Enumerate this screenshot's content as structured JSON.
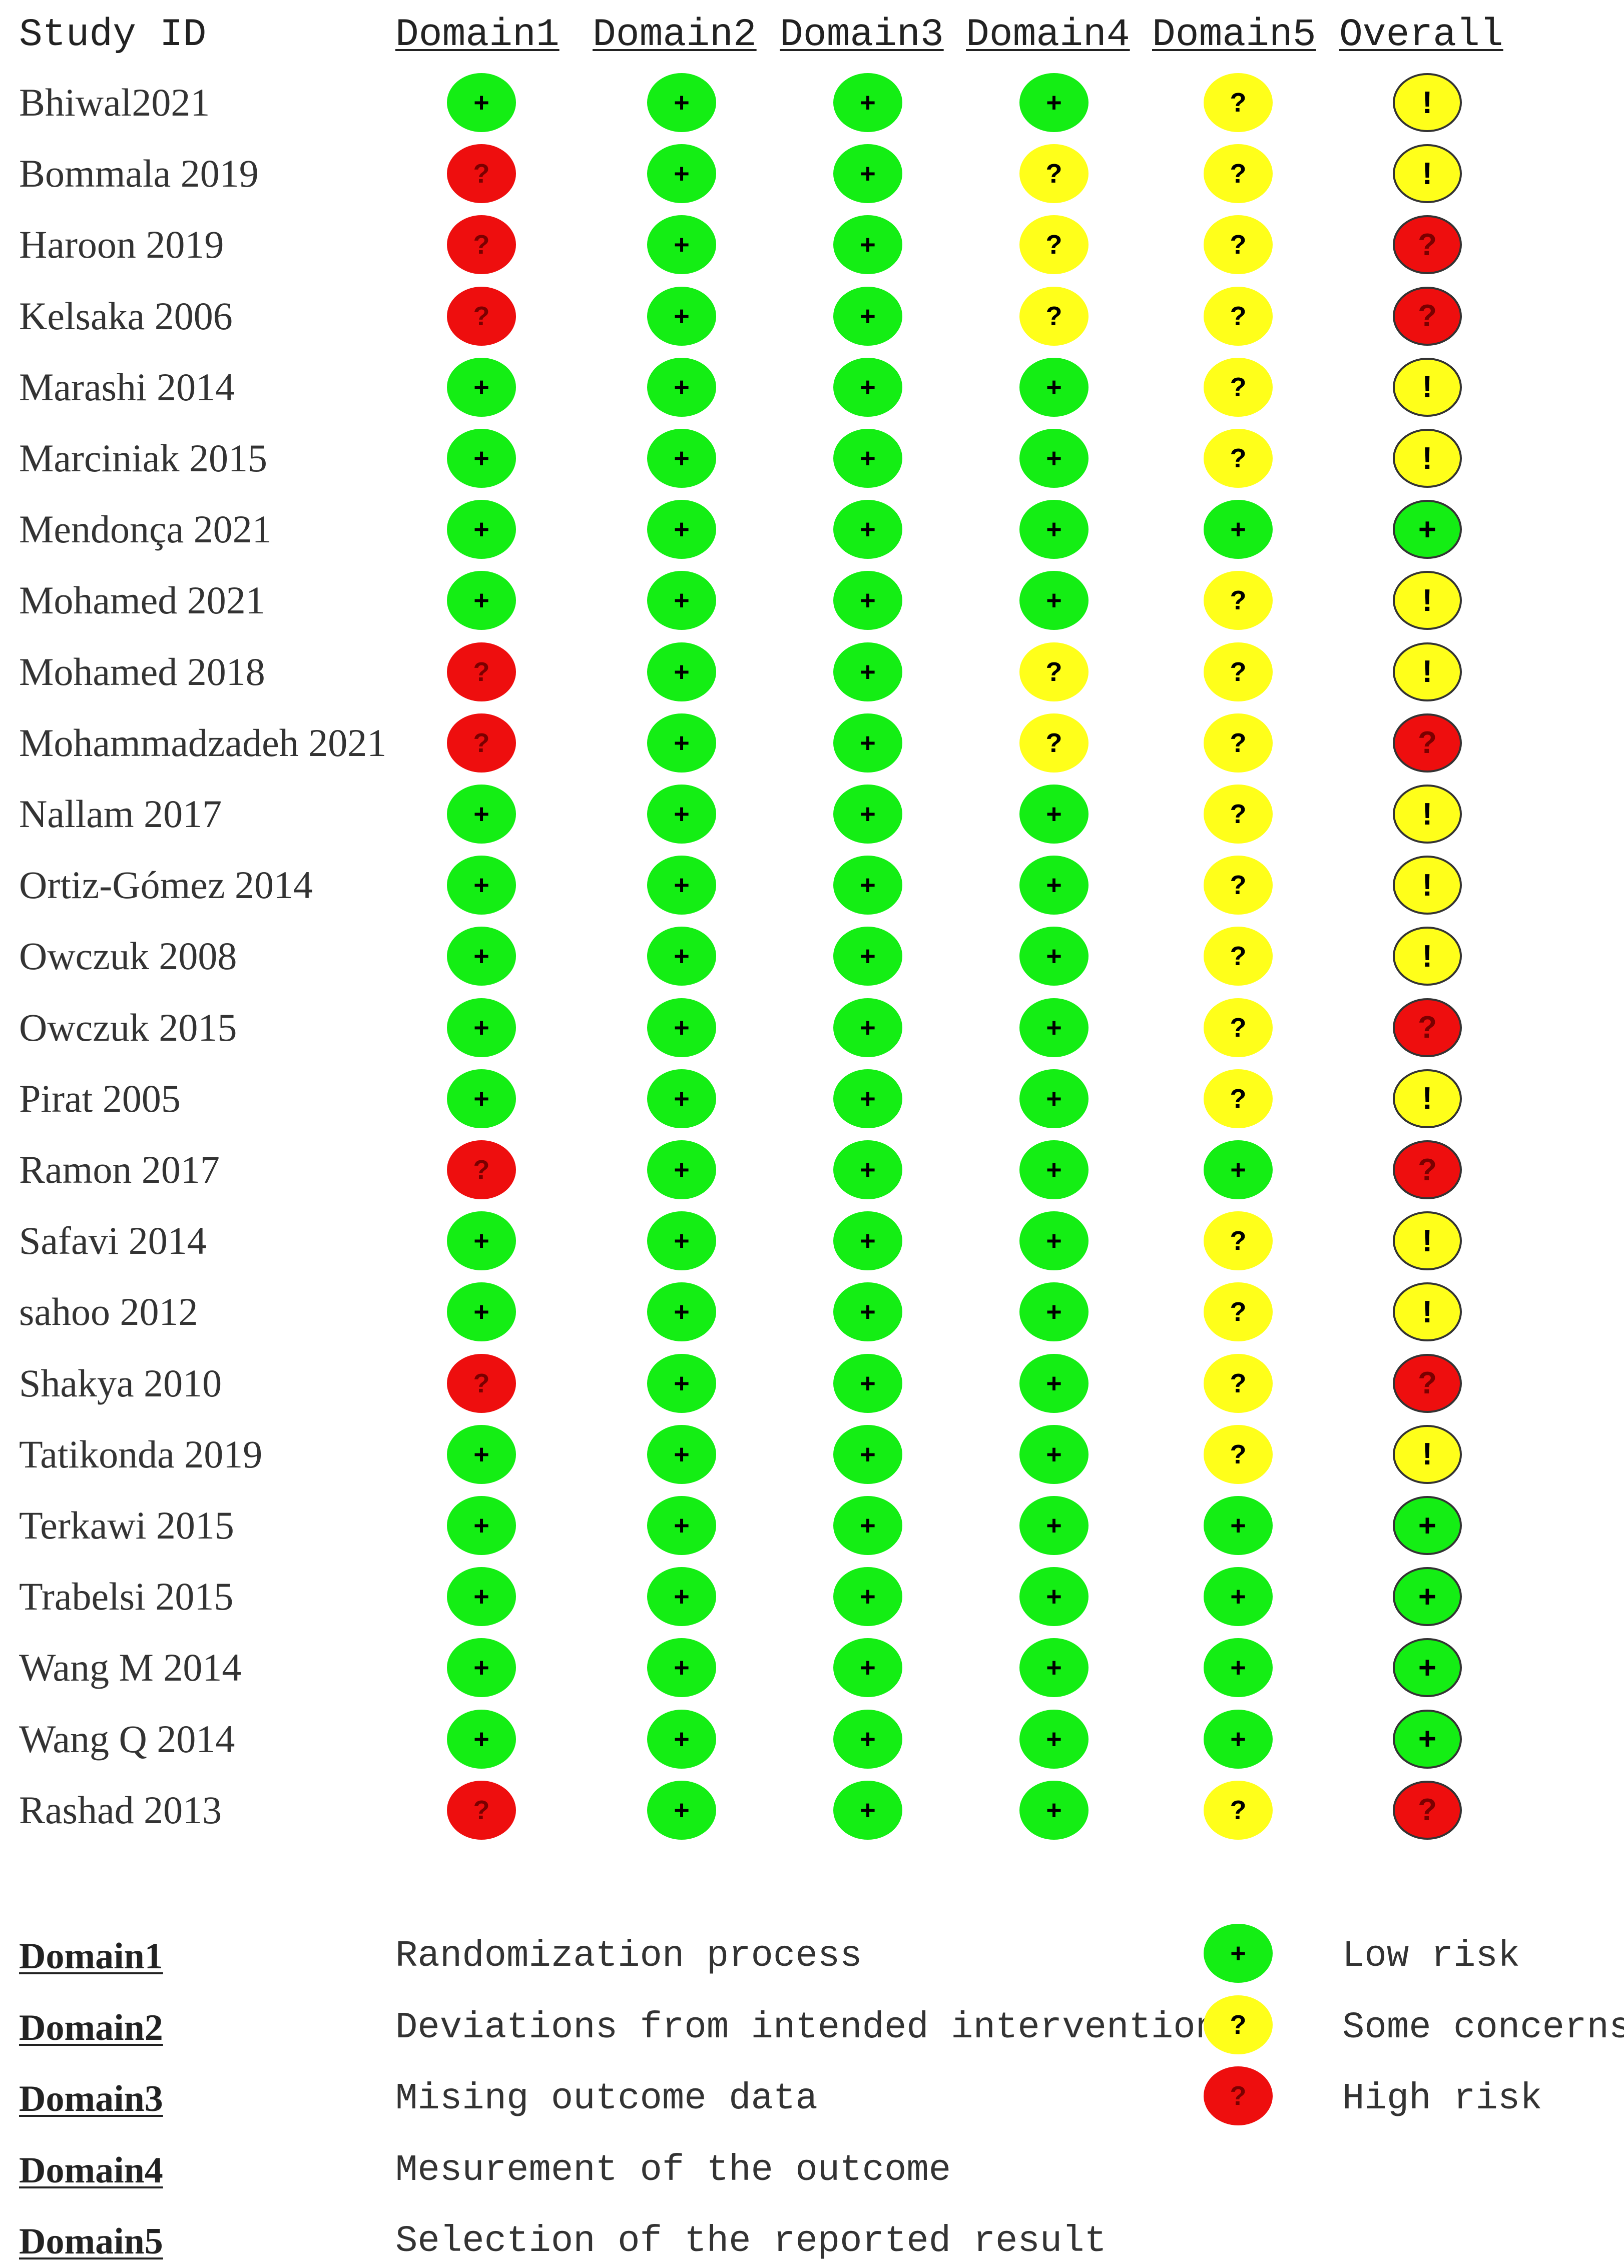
{
  "header": {
    "study_id": "Study  ID",
    "domains": [
      "Domain1",
      "Domain2",
      "Domain3",
      "Domain4",
      "Domain5"
    ],
    "overall": "Overall"
  },
  "colors": {
    "low": "#14ee14",
    "some": "#ffff1a",
    "high": "#ee0e0e"
  },
  "symbols": {
    "low": "+",
    "some": "?",
    "high": "?",
    "overall_some": "!"
  },
  "studies": [
    {
      "name": "Bhiwal2021",
      "d": [
        "low",
        "low",
        "low",
        "low",
        "some"
      ],
      "overall": "some"
    },
    {
      "name": "Bommala 2019",
      "d": [
        "high",
        "low",
        "low",
        "some",
        "some"
      ],
      "overall": "some"
    },
    {
      "name": "Haroon 2019",
      "d": [
        "high",
        "low",
        "low",
        "some",
        "some"
      ],
      "overall": "high"
    },
    {
      "name": "Kelsaka 2006",
      "d": [
        "high",
        "low",
        "low",
        "some",
        "some"
      ],
      "overall": "high"
    },
    {
      "name": "Marashi 2014",
      "d": [
        "low",
        "low",
        "low",
        "low",
        "some"
      ],
      "overall": "some"
    },
    {
      "name": "Marciniak 2015",
      "d": [
        "low",
        "low",
        "low",
        "low",
        "some"
      ],
      "overall": "some"
    },
    {
      "name": "Mendonça 2021",
      "d": [
        "low",
        "low",
        "low",
        "low",
        "low"
      ],
      "overall": "low"
    },
    {
      "name": "Mohamed 2021",
      "d": [
        "low",
        "low",
        "low",
        "low",
        "some"
      ],
      "overall": "some"
    },
    {
      "name": "Mohamed 2018",
      "d": [
        "high",
        "low",
        "low",
        "some",
        "some"
      ],
      "overall": "some"
    },
    {
      "name": "Mohammadzadeh 2021",
      "d": [
        "high",
        "low",
        "low",
        "some",
        "some"
      ],
      "overall": "high"
    },
    {
      "name": "Nallam 2017",
      "d": [
        "low",
        "low",
        "low",
        "low",
        "some"
      ],
      "overall": "some"
    },
    {
      "name": "Ortiz-Gómez 2014",
      "d": [
        "low",
        "low",
        "low",
        "low",
        "some"
      ],
      "overall": "some"
    },
    {
      "name": "Owczuk 2008",
      "d": [
        "low",
        "low",
        "low",
        "low",
        "some"
      ],
      "overall": "some"
    },
    {
      "name": "Owczuk 2015",
      "d": [
        "low",
        "low",
        "low",
        "low",
        "some"
      ],
      "overall": "high"
    },
    {
      "name": "Pirat 2005",
      "d": [
        "low",
        "low",
        "low",
        "low",
        "some"
      ],
      "overall": "some"
    },
    {
      "name": "Ramon 2017",
      "d": [
        "high",
        "low",
        "low",
        "low",
        "low"
      ],
      "overall": "high"
    },
    {
      "name": "Safavi 2014",
      "d": [
        "low",
        "low",
        "low",
        "low",
        "some"
      ],
      "overall": "some"
    },
    {
      "name": "sahoo 2012",
      "d": [
        "low",
        "low",
        "low",
        "low",
        "some"
      ],
      "overall": "some"
    },
    {
      "name": "Shakya 2010",
      "d": [
        "high",
        "low",
        "low",
        "low",
        "some"
      ],
      "overall": "high"
    },
    {
      "name": "Tatikonda 2019",
      "d": [
        "low",
        "low",
        "low",
        "low",
        "some"
      ],
      "overall": "some"
    },
    {
      "name": "Terkawi 2015",
      "d": [
        "low",
        "low",
        "low",
        "low",
        "low"
      ],
      "overall": "low"
    },
    {
      "name": "Trabelsi 2015",
      "d": [
        "low",
        "low",
        "low",
        "low",
        "low"
      ],
      "overall": "low"
    },
    {
      "name": "Wang M 2014",
      "d": [
        "low",
        "low",
        "low",
        "low",
        "low"
      ],
      "overall": "low"
    },
    {
      "name": "Wang Q 2014",
      "d": [
        "low",
        "low",
        "low",
        "low",
        "low"
      ],
      "overall": "low"
    },
    {
      "name": "Rashad 2013",
      "d": [
        "high",
        "low",
        "low",
        "low",
        "some"
      ],
      "overall": "high"
    }
  ],
  "legend": {
    "domains": [
      {
        "label": "Domain1",
        "text": "Randomization process"
      },
      {
        "label": "Domain2",
        "text": "Deviations from intended interventions"
      },
      {
        "label": "Domain3",
        "text": "Mising outcome data"
      },
      {
        "label": "Domain4",
        "text": "Mesurement of the outcome"
      },
      {
        "label": "Domain5",
        "text": "Selection of the reported result"
      }
    ],
    "risks": [
      {
        "level": "low",
        "symbol": "+",
        "text": "Low risk"
      },
      {
        "level": "some",
        "symbol": "?",
        "text": "Some concerns"
      },
      {
        "level": "high",
        "symbol": "?",
        "text": "High risk"
      }
    ]
  }
}
